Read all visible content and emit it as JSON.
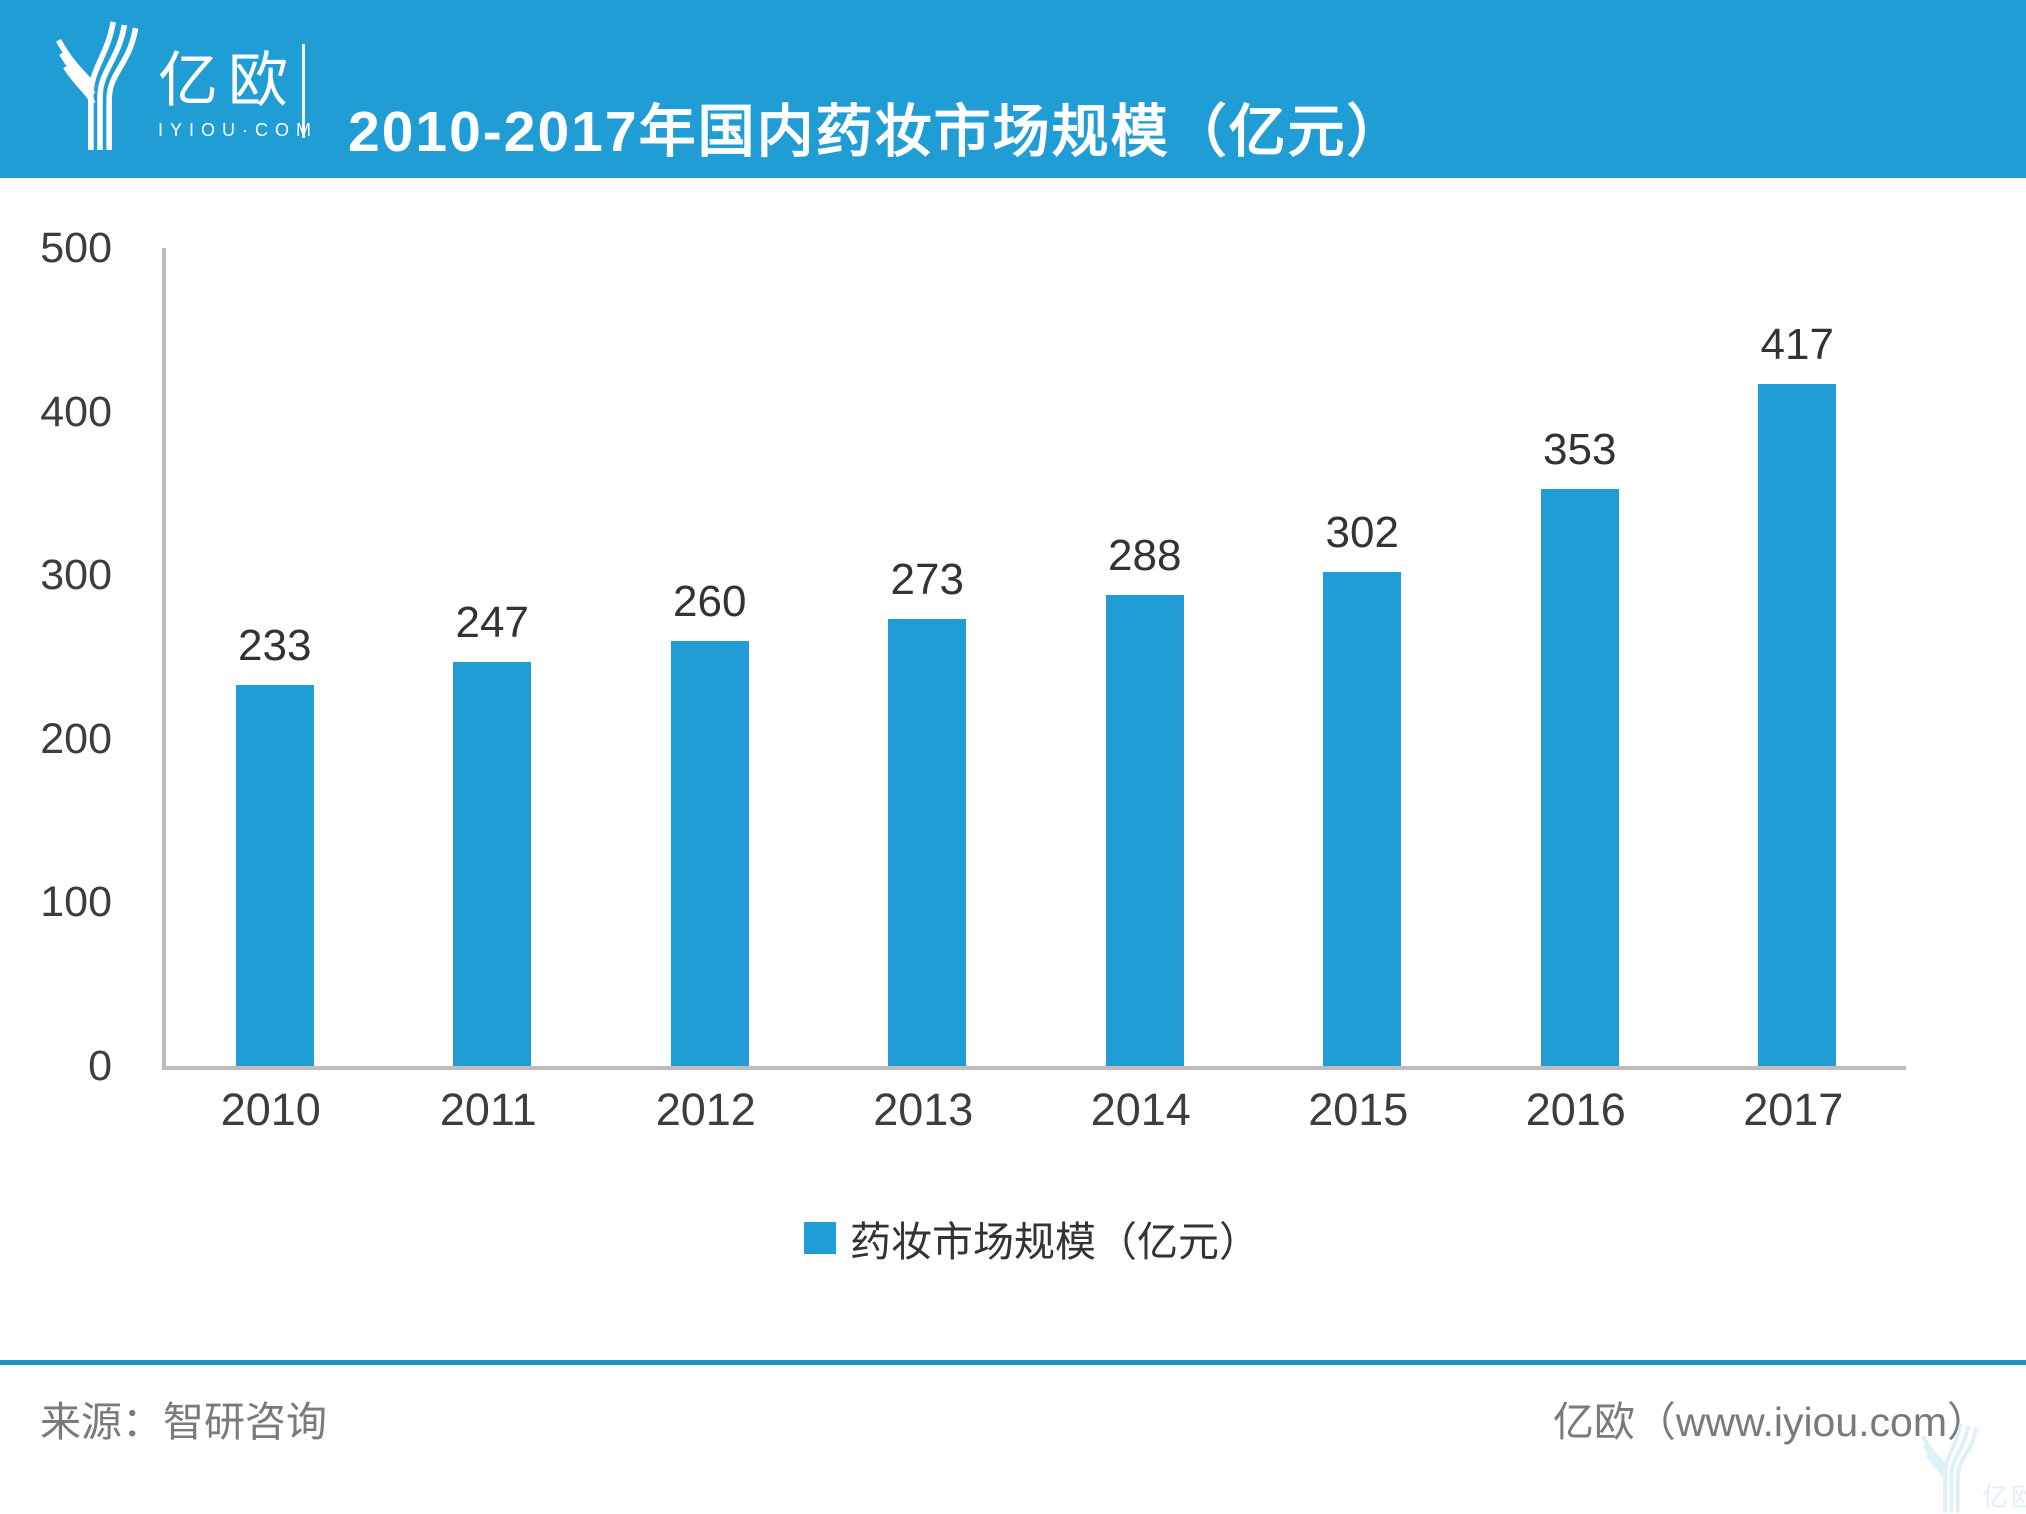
{
  "header": {
    "logo": {
      "name_cn": "亿欧",
      "name_en": "IYIOU·COM"
    },
    "title": "2010-2017年国内药妆市场规模（亿元）"
  },
  "chart_data": {
    "type": "bar",
    "title": "2010-2017年国内药妆市场规模（亿元）",
    "categories": [
      "2010",
      "2011",
      "2012",
      "2013",
      "2014",
      "2015",
      "2016",
      "2017"
    ],
    "values": [
      233,
      247,
      260,
      273,
      288,
      302,
      353,
      417
    ],
    "xlabel": "",
    "ylabel": "",
    "ylim": [
      0,
      500
    ],
    "yticks": [
      0,
      100,
      200,
      300,
      400,
      500
    ],
    "grid": false,
    "data_labels": true,
    "bar_color": "#1F9DD4",
    "legend": [
      {
        "label": "药妆市场规模（亿元）",
        "color": "#1F9DD4"
      }
    ],
    "legend_position": "bottom"
  },
  "footer": {
    "source": "来源：智研咨询",
    "credit": "亿欧（www.iyiou.com）"
  },
  "colors": {
    "banner": "#1F9DD4",
    "axis": "#BDBDBD",
    "divider": "#1E93C6",
    "text_dark": "#3D3D3D",
    "text_gray": "#7A7A7A"
  }
}
